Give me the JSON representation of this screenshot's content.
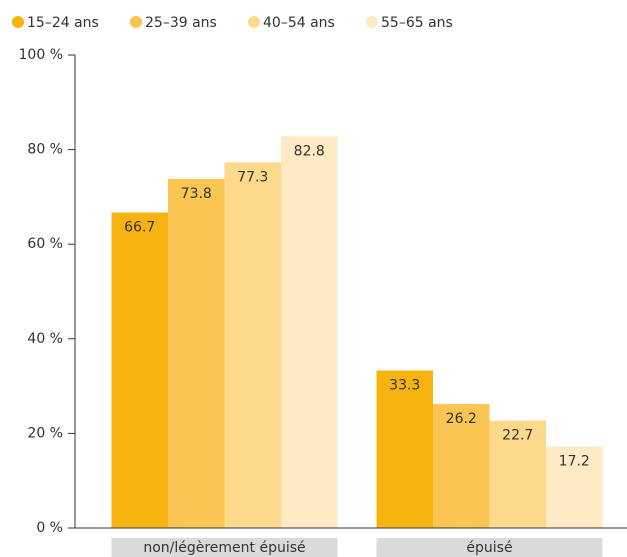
{
  "chart_data": {
    "type": "bar",
    "categories": [
      "non/légèrement épuisé",
      "épuisé"
    ],
    "series": [
      {
        "name": "15–24 ans",
        "color": "#f7b410",
        "values": [
          66.7,
          33.3
        ]
      },
      {
        "name": "25–39 ans",
        "color": "#fac552",
        "values": [
          73.8,
          26.2
        ]
      },
      {
        "name": "40–54 ans",
        "color": "#fdd98c",
        "values": [
          77.3,
          22.7
        ]
      },
      {
        "name": "55–65 ans",
        "color": "#feeac4",
        "values": [
          82.8,
          17.2
        ]
      }
    ],
    "ylim": [
      0,
      100
    ],
    "yticks": [
      {
        "value": 0,
        "label": "0 %"
      },
      {
        "value": 20,
        "label": "20 %"
      },
      {
        "value": 40,
        "label": "40 %"
      },
      {
        "value": 60,
        "label": "60 %"
      },
      {
        "value": 80,
        "label": "80 %"
      },
      {
        "value": 100,
        "label": "100 %"
      }
    ],
    "legend": "top-left"
  }
}
